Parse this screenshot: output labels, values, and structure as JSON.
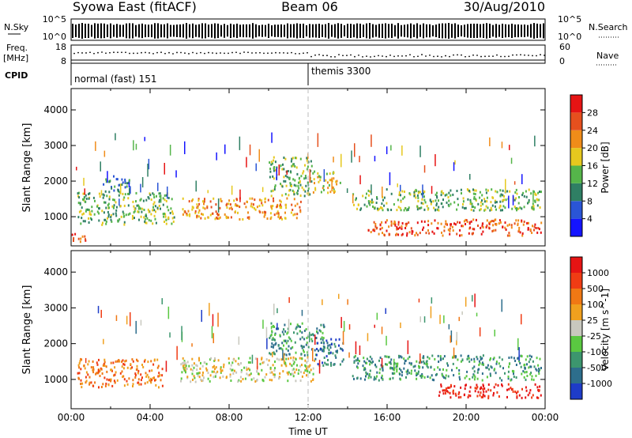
{
  "header": {
    "title_left": "Syowa East (fitACF)",
    "title_center": "Beam 06",
    "title_right": "30/Aug/2010"
  },
  "top_panels": {
    "nsky_label": "N.Sky",
    "nsky_ticks": [
      "10^5",
      "10^0"
    ],
    "nsearch_label": "N.Search",
    "nsearch_ticks": [
      "10^5",
      "10^0"
    ],
    "freq_label_1": "Freq.",
    "freq_label_2": "[MHz]",
    "freq_ticks": [
      "18",
      "8"
    ],
    "nave_label": "Nave",
    "nave_ticks": [
      "60",
      "0"
    ],
    "cpid_label": "CPID",
    "cpid_modes": [
      {
        "text": "normal (fast) 151"
      },
      {
        "text": "themis 3300"
      }
    ]
  },
  "chart_data": [
    {
      "type": "heatmap",
      "title": "",
      "xlabel": "",
      "ylabel": "Slant Range [km]",
      "xlim": [
        0,
        24
      ],
      "ylim": [
        180,
        4600
      ],
      "yticks": [
        "1000",
        "2000",
        "3000",
        "4000"
      ],
      "colorbar": {
        "label": "Power [dB]",
        "ticks": [
          "4",
          "8",
          "12",
          "16",
          "20",
          "24",
          "28"
        ],
        "colors": [
          "#1414ff",
          "#2a55d6",
          "#2f7f64",
          "#55b54a",
          "#e6c81e",
          "#f08c19",
          "#e6501e",
          "#e61414"
        ]
      },
      "echo_regions": [
        {
          "t0": 0.0,
          "t1": 0.7,
          "r0": 300,
          "r1": 600,
          "level": 6
        },
        {
          "t0": 0.3,
          "t1": 5.2,
          "r0": 800,
          "r1": 1700,
          "level": 3
        },
        {
          "t0": 1.6,
          "t1": 3.0,
          "r0": 1700,
          "r1": 2200,
          "level": 2
        },
        {
          "t0": 5.6,
          "t1": 11.6,
          "r0": 950,
          "r1": 1550,
          "level": 5
        },
        {
          "t0": 10.0,
          "t1": 12.2,
          "r0": 1600,
          "r1": 2700,
          "level": 3
        },
        {
          "t0": 12.2,
          "t1": 13.6,
          "r0": 1700,
          "r1": 2300,
          "level": 4
        },
        {
          "t0": 14.2,
          "t1": 23.8,
          "r0": 1200,
          "r1": 1800,
          "level": 3
        },
        {
          "t0": 15.0,
          "t1": 23.8,
          "r0": 500,
          "r1": 950,
          "level": 6
        }
      ]
    },
    {
      "type": "heatmap",
      "title": "",
      "xlabel": "Time UT",
      "ylabel": "Slant Range [km]",
      "xlim": [
        0,
        24
      ],
      "ylim": [
        180,
        4600
      ],
      "xticks": [
        "00:00",
        "04:00",
        "08:00",
        "12:00",
        "16:00",
        "20:00",
        "00:00"
      ],
      "yticks": [
        "1000",
        "2000",
        "3000",
        "4000"
      ],
      "colorbar": {
        "label": "Velocity [m s^-1]",
        "ticks": [
          "1000",
          "500",
          "100",
          "25",
          "-25",
          "-100",
          "-500",
          "-1000"
        ],
        "colors": [
          "#1e3cc8",
          "#2d6e8c",
          "#3c966e",
          "#5ac841",
          "#c8c8be",
          "#f0a01e",
          "#f07814",
          "#f03c14",
          "#e61414"
        ]
      },
      "echo_regions": [
        {
          "t0": 0.3,
          "t1": 4.6,
          "r0": 800,
          "r1": 1600,
          "level": 6
        },
        {
          "t0": 5.5,
          "t1": 12.3,
          "r0": 950,
          "r1": 1650,
          "level": 4
        },
        {
          "t0": 10.0,
          "t1": 12.8,
          "r0": 1700,
          "r1": 2600,
          "level": 2
        },
        {
          "t0": 12.3,
          "t1": 13.8,
          "r0": 1400,
          "r1": 2200,
          "level": 1
        },
        {
          "t0": 14.2,
          "t1": 23.8,
          "r0": 1000,
          "r1": 1700,
          "level": 2
        },
        {
          "t0": 18.5,
          "t1": 23.8,
          "r0": 500,
          "r1": 900,
          "level": 8
        }
      ]
    }
  ]
}
